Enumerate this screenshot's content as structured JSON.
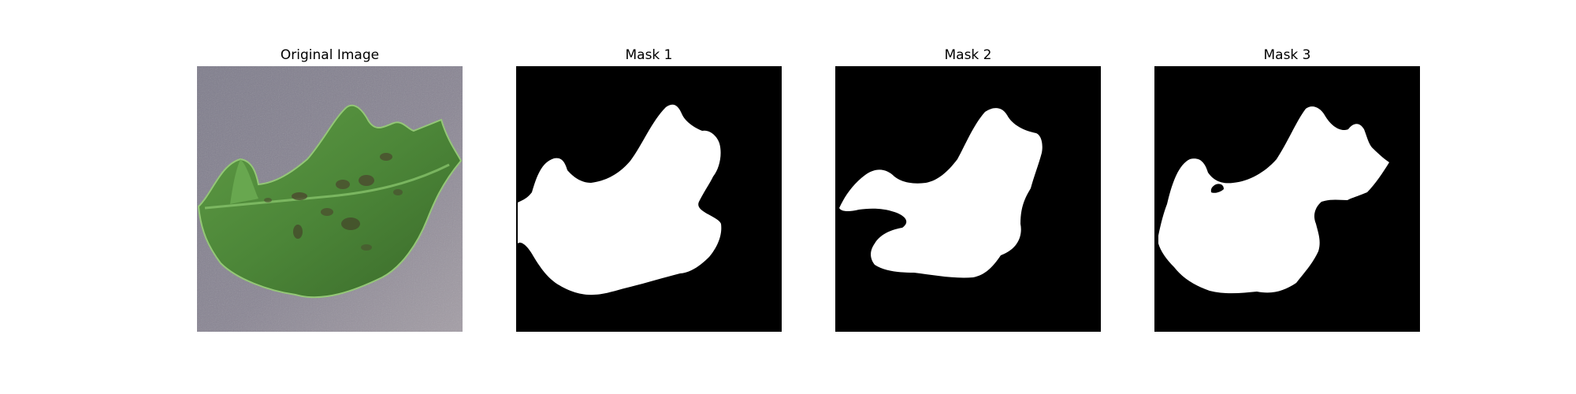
{
  "panels": [
    {
      "title": "Original Image"
    },
    {
      "title": "Mask 1"
    },
    {
      "title": "Mask 2"
    },
    {
      "title": "Mask 3"
    }
  ],
  "colors": {
    "background_surface": "#87838f",
    "leaf_dark": "#3d6a2c",
    "leaf_mid": "#4f8a3a",
    "leaf_light": "#78b85c",
    "lesion": "#4b4a2e",
    "mask_background": "#000000",
    "mask_foreground": "#ffffff"
  }
}
